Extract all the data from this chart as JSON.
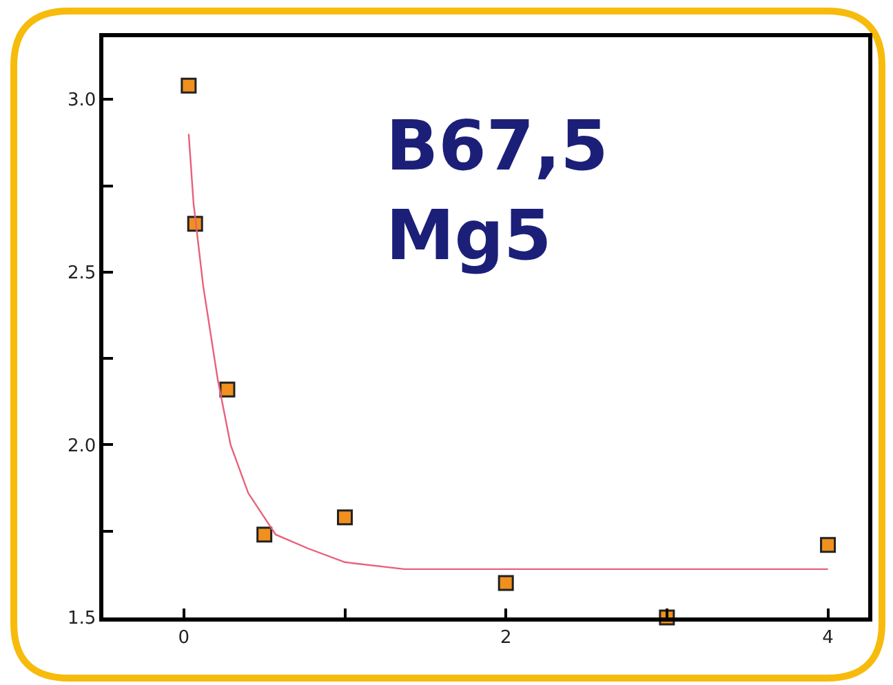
{
  "chart_data": {
    "type": "scatter",
    "annotations": [
      "B67,5\nMg5"
    ],
    "series": [
      {
        "color": "#f0901e",
        "marker": "square",
        "x": [
          0.03,
          0.07,
          0.27,
          0.5,
          1.0,
          2.0,
          3.0,
          4.0
        ],
        "values": [
          3.04,
          2.64,
          2.16,
          1.74,
          1.79,
          1.6,
          1.5,
          1.71
        ]
      },
      {
        "type": "line",
        "color": "#e8607a",
        "marker": "none",
        "line_style": "solid",
        "x": [
          0.03,
          0.06,
          0.12,
          0.21,
          0.29,
          0.4,
          0.57,
          0.77,
          1.0,
          1.37,
          2.0,
          3.0,
          4.0
        ],
        "values": [
          2.9,
          2.7,
          2.46,
          2.19,
          2.0,
          1.86,
          1.74,
          1.7,
          1.66,
          1.64,
          1.64,
          1.64,
          1.64
        ]
      }
    ],
    "xlim": [
      -0.5,
      4.25
    ],
    "xticks": [
      0,
      {
        "value": 1,
        "label": null
      },
      2,
      {
        "value": 3,
        "label": null
      },
      4
    ],
    "ylim": [
      1.5,
      3.18
    ],
    "yticks": [
      {
        "value": 1.5,
        "label": "1.5"
      },
      {
        "value": 1.75,
        "label": null
      },
      {
        "value": 2.0,
        "label": "2.0"
      },
      {
        "value": 2.25,
        "label": null
      },
      {
        "value": 2.5,
        "label": "2.5"
      },
      {
        "value": 2.75,
        "label": null
      },
      {
        "value": 3.0,
        "label": "3.0"
      }
    ],
    "log": false
  }
}
